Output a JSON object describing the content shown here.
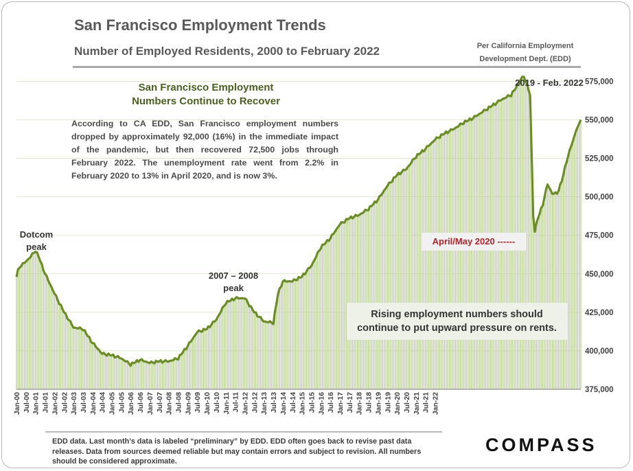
{
  "header": {
    "title": "San Francisco Employment Trends",
    "subtitle": "Number of Employed Residents, 2000 to February 2022",
    "source_line1": "Per California  Employment",
    "source_line2": "Development Dept. (EDD)"
  },
  "annotation": {
    "title_line1": "San Francisco Employment",
    "title_line2": "Numbers Continue to Recover",
    "body": "According to CA EDD, San Francisco employment numbers dropped by approximately 92,000 (16%) in the immediate impact of the pandemic, but then recovered 72,500 jobs through February 2022. The unemployment rate went from 2.2% in February 2020 to 13% in April 2020, and is now 3%."
  },
  "labels": {
    "dotcom_line1": "Dotcom",
    "dotcom_line2": "peak",
    "peak2007_line1": "2007 – 2008",
    "peak2007_line2": "peak",
    "peak2019": "2019 - Feb. 2022",
    "april_may": "April/May 2020 ------",
    "rising_line1": "Rising employment numbers should",
    "rising_line2": "continue to put upward pressure on rents."
  },
  "footer": {
    "note": "EDD data. Last month’s data is labeled “preliminary” by EDD. EDD often goes back to revise past data releases. Data from sources deemed reliable but may contain errors and subject to revision. All numbers should be considered approximate.",
    "logo": "COMPASS"
  },
  "colors": {
    "line": "#6b8e23",
    "bar": "#b3c98c",
    "grid": "#d9e2c4"
  },
  "chart_data": {
    "type": "area",
    "title": "Number of Employed Residents, 2000 to February 2022",
    "xlabel": "",
    "ylabel": "",
    "ylim": [
      375000,
      585000
    ],
    "y_ticks": [
      375000,
      400000,
      425000,
      450000,
      475000,
      500000,
      525000,
      550000,
      575000
    ],
    "y_tick_labels": [
      "375,000",
      "400,000",
      "425,000",
      "450,000",
      "475,000",
      "500,000",
      "525,000",
      "550,000",
      "575,000"
    ],
    "x_tick_labels": [
      "Jan-00",
      "Jul-00",
      "Jan-01",
      "Jul-01",
      "Jan-02",
      "Jul-02",
      "Jan-03",
      "Jul-03",
      "Jan-04",
      "Jul-04",
      "Jan-05",
      "Jul-05",
      "Jan-06",
      "Jul-06",
      "Jan-07",
      "Jul-07",
      "Jan-08",
      "Jul-08",
      "Jan-09",
      "Jul-09",
      "Jan-10",
      "Jul-10",
      "Jan-11",
      "Jul-11",
      "Jan-12",
      "Jul-12",
      "Jan-13",
      "Jul-13",
      "Jan-14",
      "Jul-14",
      "Jan-15",
      "Jul-15",
      "Jan-16",
      "Jul-16",
      "Jan-17",
      "Jul-17",
      "Jan-18",
      "Jul-18",
      "Jan-19",
      "Jul-19",
      "Jan-20",
      "Jul-20",
      "Jan-21",
      "Jul-21",
      "Jan-22"
    ],
    "anchors": [
      [
        0,
        448000
      ],
      [
        1,
        453000
      ],
      [
        3,
        455000
      ],
      [
        6,
        458000
      ],
      [
        9,
        461000
      ],
      [
        12,
        465000
      ],
      [
        14,
        461000
      ],
      [
        18,
        450000
      ],
      [
        24,
        437000
      ],
      [
        30,
        425000
      ],
      [
        36,
        415000
      ],
      [
        42,
        414000
      ],
      [
        48,
        405000
      ],
      [
        54,
        398000
      ],
      [
        60,
        397000
      ],
      [
        66,
        395000
      ],
      [
        72,
        391000
      ],
      [
        78,
        394000
      ],
      [
        84,
        392000
      ],
      [
        90,
        393000
      ],
      [
        96,
        393000
      ],
      [
        102,
        395000
      ],
      [
        108,
        403000
      ],
      [
        114,
        412000
      ],
      [
        120,
        414000
      ],
      [
        126,
        420000
      ],
      [
        132,
        431000
      ],
      [
        138,
        434000
      ],
      [
        144,
        434000
      ],
      [
        150,
        425000
      ],
      [
        156,
        419000
      ],
      [
        162,
        418000
      ],
      [
        165,
        437000
      ],
      [
        168,
        445000
      ],
      [
        174,
        445000
      ],
      [
        180,
        448000
      ],
      [
        186,
        455000
      ],
      [
        192,
        467000
      ],
      [
        198,
        473000
      ],
      [
        204,
        482000
      ],
      [
        210,
        486000
      ],
      [
        216,
        488000
      ],
      [
        222,
        492000
      ],
      [
        228,
        498000
      ],
      [
        234,
        507000
      ],
      [
        240,
        514000
      ],
      [
        246,
        518000
      ],
      [
        252,
        526000
      ],
      [
        258,
        531000
      ],
      [
        264,
        537000
      ],
      [
        270,
        541000
      ],
      [
        276,
        544000
      ],
      [
        282,
        548000
      ],
      [
        288,
        551000
      ],
      [
        294,
        555000
      ],
      [
        300,
        559000
      ],
      [
        306,
        563000
      ],
      [
        312,
        566000
      ],
      [
        316,
        572000
      ],
      [
        318,
        576000
      ],
      [
        320,
        578000
      ],
      [
        322,
        573000
      ],
      [
        324,
        566000
      ],
      [
        326,
        487000
      ],
      [
        327,
        478000
      ],
      [
        329,
        486000
      ],
      [
        332,
        495000
      ],
      [
        335,
        508000
      ],
      [
        338,
        502000
      ],
      [
        341,
        502000
      ],
      [
        344,
        510000
      ],
      [
        347,
        523000
      ],
      [
        350,
        533000
      ],
      [
        353,
        543000
      ],
      [
        356,
        550000
      ]
    ]
  }
}
